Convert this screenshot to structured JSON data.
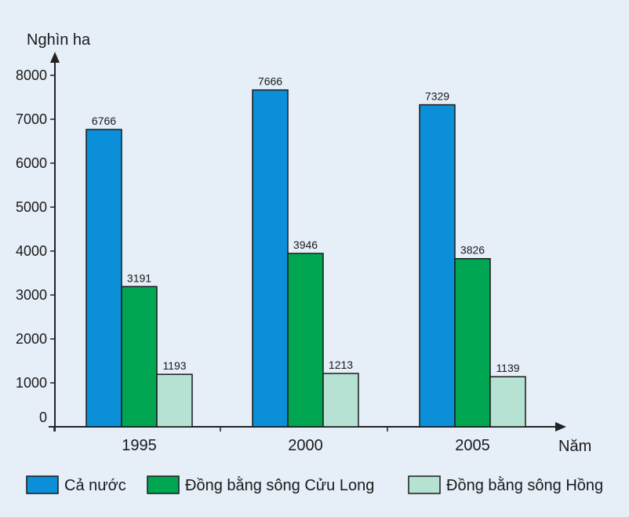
{
  "chart_data": {
    "type": "bar",
    "ylabel": "Nghìn ha",
    "xlabel": "Năm",
    "categories": [
      "1995",
      "2000",
      "2005"
    ],
    "ylim": [
      0,
      8000
    ],
    "yticks": [
      0,
      1000,
      2000,
      3000,
      4000,
      5000,
      6000,
      7000,
      8000
    ],
    "grid": false,
    "legend_position": "bottom",
    "series": [
      {
        "name": "Cả nước",
        "values": [
          6766,
          7666,
          7329
        ],
        "color": "#0b8fd8"
      },
      {
        "name": "Đồng bằng sông Cửu Long",
        "values": [
          3191,
          3946,
          3826
        ],
        "color": "#00a651"
      },
      {
        "name": "Đồng bằng sông Hồng",
        "values": [
          1193,
          1213,
          1139
        ],
        "color": "#b6e2d3"
      }
    ]
  }
}
